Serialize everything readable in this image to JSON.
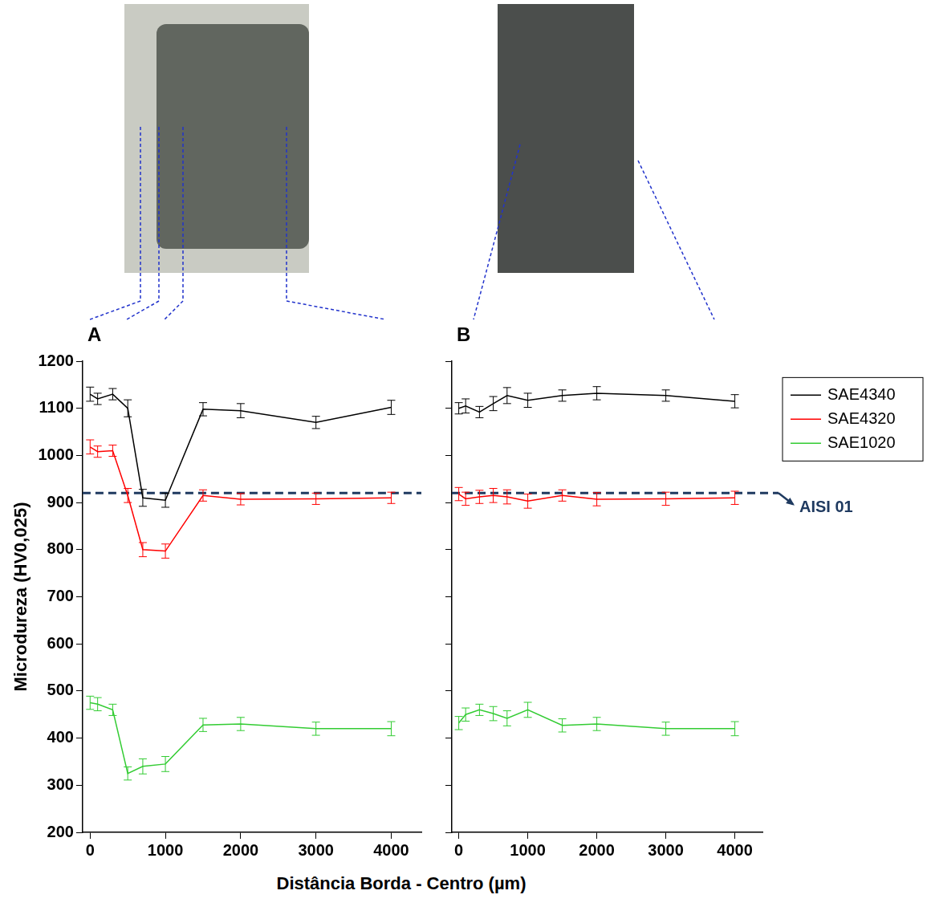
{
  "xlabel": "Distância Borda - Centro (µm)",
  "reference": {
    "label": "AISI 01",
    "value": 920,
    "color": "#1f3a60",
    "line_style": "dashed"
  },
  "chart_data": [
    {
      "type": "line",
      "title": "A",
      "ylabel": "Microdureza (HV0,025)",
      "x": [
        0,
        100,
        300,
        500,
        700,
        1000,
        1500,
        2000,
        3000,
        4000
      ],
      "xlim": [
        -100,
        4400
      ],
      "xticks": [
        0,
        1000,
        2000,
        3000,
        4000
      ],
      "ylim": [
        200,
        1200
      ],
      "yticks": [
        200,
        300,
        400,
        500,
        600,
        700,
        800,
        900,
        1000,
        1100,
        1200
      ],
      "grid": false,
      "series": [
        {
          "name": "SAE4340",
          "color": "#000000",
          "values": [
            1130,
            1120,
            1130,
            1100,
            910,
            905,
            1098,
            1095,
            1070,
            1102
          ],
          "errors": [
            15,
            12,
            12,
            18,
            18,
            15,
            14,
            15,
            13,
            15
          ]
        },
        {
          "name": "SAE4320",
          "color": "#ff0000",
          "values": [
            1018,
            1008,
            1010,
            915,
            800,
            797,
            915,
            907,
            908,
            910
          ],
          "errors": [
            15,
            12,
            12,
            15,
            15,
            15,
            12,
            12,
            12,
            12
          ]
        },
        {
          "name": "SAE1020",
          "color": "#33cc33",
          "values": [
            475,
            472,
            460,
            325,
            340,
            345,
            428,
            430,
            420,
            420
          ],
          "errors": [
            14,
            14,
            12,
            14,
            16,
            16,
            14,
            14,
            14,
            15
          ]
        }
      ]
    },
    {
      "type": "line",
      "title": "B",
      "x": [
        0,
        100,
        300,
        500,
        700,
        1000,
        1500,
        2000,
        3000,
        4000
      ],
      "xlim": [
        -100,
        4400
      ],
      "xticks": [
        0,
        1000,
        2000,
        3000,
        4000
      ],
      "ylim": [
        200,
        1200
      ],
      "yticks": [
        200,
        300,
        400,
        500,
        600,
        700,
        800,
        900,
        1000,
        1100,
        1200
      ],
      "grid": false,
      "tick_labels": "x",
      "legend": "right",
      "series": [
        {
          "name": "SAE4340",
          "color": "#000000",
          "values": [
            1100,
            1105,
            1092,
            1110,
            1127,
            1117,
            1127,
            1132,
            1127,
            1115
          ],
          "errors": [
            12,
            15,
            12,
            15,
            17,
            15,
            12,
            14,
            12,
            14
          ]
        },
        {
          "name": "SAE4320",
          "color": "#ff0000",
          "values": [
            918,
            908,
            912,
            915,
            912,
            903,
            915,
            907,
            908,
            910
          ],
          "errors": [
            14,
            14,
            14,
            15,
            15,
            15,
            12,
            14,
            14,
            14
          ]
        },
        {
          "name": "SAE1020",
          "color": "#33cc33",
          "values": [
            432,
            450,
            460,
            452,
            442,
            460,
            427,
            430,
            420,
            420
          ],
          "errors": [
            14,
            14,
            12,
            15,
            16,
            16,
            14,
            14,
            14,
            15
          ]
        }
      ]
    }
  ]
}
